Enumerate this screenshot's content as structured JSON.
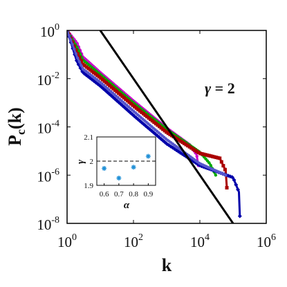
{
  "chart_data": [
    {
      "type": "line",
      "xlabel": "k",
      "ylabel": "P",
      "ylabel_sub": "c",
      "ylabel_arg": "(k)",
      "xscale": "log",
      "yscale": "log",
      "xlim": [
        1,
        1000000
      ],
      "ylim": [
        1e-08,
        1
      ],
      "x_ticks": [
        {
          "value": 1,
          "base": "10",
          "exp": "0"
        },
        {
          "value": 100,
          "base": "10",
          "exp": "2"
        },
        {
          "value": 10000,
          "base": "10",
          "exp": "4"
        },
        {
          "value": 1000000,
          "base": "10",
          "exp": "6"
        }
      ],
      "y_ticks": [
        {
          "value": 1,
          "base": "10",
          "exp": "0"
        },
        {
          "value": 0.01,
          "base": "10",
          "exp": "-2"
        },
        {
          "value": 0.0001,
          "base": "10",
          "exp": "-4"
        },
        {
          "value": 1e-06,
          "base": "10",
          "exp": "-6"
        },
        {
          "value": 1e-08,
          "base": "10",
          "exp": "-8"
        }
      ],
      "reference_line": {
        "annotation_gamma": "γ",
        "annotation_eq": " = 2",
        "slope": -2,
        "x": [
          10,
          1000000
        ],
        "y": [
          1,
          1e-10
        ],
        "color": "#000000"
      },
      "series": [
        {
          "color": "#cc00cc",
          "marker": "line",
          "points": [
            [
              1,
              1
            ],
            [
              2,
              0.3
            ],
            [
              3,
              0.08
            ],
            [
              10,
              0.018
            ],
            [
              100,
              0.0012
            ],
            [
              1000,
              9e-05
            ],
            [
              5000,
              1.8e-05
            ],
            [
              8000,
              7e-06
            ],
            [
              9000,
              2.5e-06
            ]
          ]
        },
        {
          "color": "#00aa00",
          "marker": "line",
          "points": [
            [
              1,
              1
            ],
            [
              2,
              0.2
            ],
            [
              3,
              0.06
            ],
            [
              10,
              0.015
            ],
            [
              100,
              0.001
            ],
            [
              1000,
              8e-05
            ],
            [
              10000,
              9e-06
            ],
            [
              20000,
              3e-06
            ],
            [
              30000,
              1e-06
            ]
          ]
        },
        {
          "color": "#aa0000",
          "marker": "square",
          "points": [
            [
              1,
              1
            ],
            [
              2,
              0.12
            ],
            [
              3,
              0.04
            ],
            [
              10,
              0.011
            ],
            [
              100,
              0.00075
            ],
            [
              1000,
              6e-05
            ],
            [
              10000,
              8e-06
            ],
            [
              40000,
              5e-06
            ],
            [
              60000,
              1.5e-06
            ],
            [
              65000,
              3e-07
            ]
          ]
        },
        {
          "color": "#0000aa",
          "marker": "diamond",
          "points": [
            [
              1,
              1
            ],
            [
              2,
              0.05
            ],
            [
              3,
              0.018
            ],
            [
              10,
              0.005
            ],
            [
              100,
              0.0003
            ],
            [
              1000,
              2e-05
            ],
            [
              10000,
              2.5e-06
            ],
            [
              100000,
              8e-07
            ],
            [
              150000,
              2e-07
            ],
            [
              160000,
              2e-08
            ]
          ]
        },
        {
          "color": "#5555cc",
          "marker": "line",
          "points": [
            [
              1,
              1
            ],
            [
              2,
              0.08
            ],
            [
              3,
              0.025
            ],
            [
              10,
              0.007
            ],
            [
              100,
              0.00045
            ],
            [
              1000,
              3e-05
            ],
            [
              10000,
              3e-06
            ],
            [
              60000,
              1e-06
            ]
          ]
        }
      ]
    },
    {
      "type": "scatter",
      "xlabel": "α",
      "ylabel": "γ",
      "xlim": [
        0.55,
        0.95
      ],
      "ylim": [
        1.9,
        2.1
      ],
      "x_ticks": [
        "0.6",
        "0.7",
        "0.8",
        "0.9"
      ],
      "y_ticks": [
        "1.9",
        "2",
        "2.1"
      ],
      "reference_y": 2,
      "marker": "asterisk",
      "color": "#1f8fd6",
      "x": [
        0.6,
        0.7,
        0.8,
        0.9
      ],
      "y": [
        1.97,
        1.93,
        1.975,
        2.02
      ]
    }
  ]
}
